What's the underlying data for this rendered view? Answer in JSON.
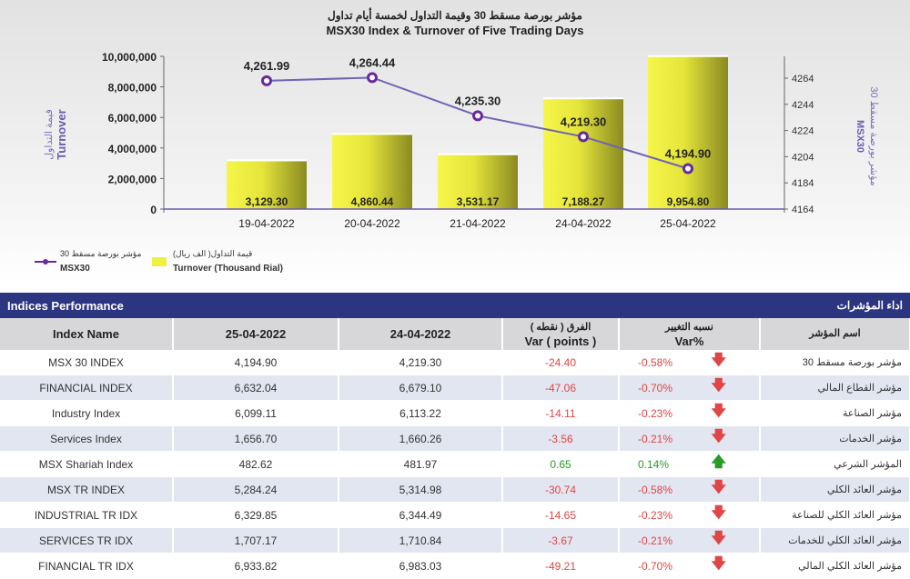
{
  "chart_data": {
    "type": "bar+line",
    "title_ar": "مؤشر بورصة مسقط 30 وقيمة التداول لخمسة أيام تداول",
    "title": "MSX30 Index & Turnover of Five Trading Days",
    "categories": [
      "19-04-2022",
      "20-04-2022",
      "21-04-2022",
      "24-04-2022",
      "25-04-2022"
    ],
    "series": [
      {
        "name": "Turnover (Thousand Rial)",
        "name_ar": "قيمة التداول( الف ريال)",
        "type": "bar",
        "color": "#e8e830",
        "values": [
          3129.3,
          4860.44,
          3531.17,
          7188.27,
          9954.8
        ],
        "labels": [
          "3,129.30",
          "4,860.44",
          "3,531.17",
          "7,188.27",
          "9,954.80"
        ]
      },
      {
        "name": "MSX30",
        "name_ar": "مؤشر بورصة مسقط 30",
        "type": "line",
        "color": "#6a5bb0",
        "values": [
          4261.99,
          4264.44,
          4235.3,
          4219.3,
          4194.9
        ],
        "labels": [
          "4,261.99",
          "4,264.44",
          "4,235.30",
          "4,219.30",
          "4,194.90"
        ]
      }
    ],
    "left_axis": {
      "label": "Turnover",
      "label_ar": "قيمة التداول",
      "ylim": [
        0,
        10000000
      ],
      "bar_value_multiplier": 1000,
      "ticks": [
        "0",
        "2,000,000",
        "4,000,000",
        "6,000,000",
        "8,000,000",
        "10,000,000"
      ],
      "tick_values": [
        0,
        2000000,
        4000000,
        6000000,
        8000000,
        10000000
      ]
    },
    "right_axis": {
      "label": "MSX30",
      "label_ar": "مؤشر بورصة مسقط 30",
      "ylim": [
        4164,
        4264
      ],
      "ticks": [
        "4164",
        "4184",
        "4204",
        "4224",
        "4244",
        "4264"
      ],
      "tick_values": [
        4164,
        4184,
        4204,
        4224,
        4244,
        4264
      ]
    },
    "legend": "bottom-left"
  },
  "table": {
    "title": "Indices Performance",
    "title_ar": "اداء المؤشرات",
    "headers": {
      "name": "Index Name",
      "d1": "25-04-2022",
      "d2": "24-04-2022",
      "var_ar": "الفرق ( نقطه )",
      "var": "Var ( points )",
      "pct_ar": "نسبه التغيير",
      "pct": "Var%",
      "name_ar": "اسم المؤشر"
    },
    "rows": [
      {
        "name": "MSX 30 INDEX",
        "d1": "4,194.90",
        "d2": "4,219.30",
        "var": "-24.40",
        "pct": "-0.58%",
        "dir": "down",
        "ar": "مؤشر بورصة مسقط 30"
      },
      {
        "name": "FINANCIAL INDEX",
        "d1": "6,632.04",
        "d2": "6,679.10",
        "var": "-47.06",
        "pct": "-0.70%",
        "dir": "down",
        "ar": "مؤشر القطاع المالي"
      },
      {
        "name": "Industry Index",
        "d1": "6,099.11",
        "d2": "6,113.22",
        "var": "-14.11",
        "pct": "-0.23%",
        "dir": "down",
        "ar": "مؤشر الصناعة"
      },
      {
        "name": "Services Index",
        "d1": "1,656.70",
        "d2": "1,660.26",
        "var": "-3.56",
        "pct": "-0.21%",
        "dir": "down",
        "ar": "مؤشر الخدمات"
      },
      {
        "name": "MSX Shariah Index",
        "d1": "482.62",
        "d2": "481.97",
        "var": "0.65",
        "pct": "0.14%",
        "dir": "up",
        "ar": "المؤشر الشرعي"
      },
      {
        "name": "MSX TR INDEX",
        "d1": "5,284.24",
        "d2": "5,314.98",
        "var": "-30.74",
        "pct": "-0.58%",
        "dir": "down",
        "ar": "مؤشر العائد الكلي"
      },
      {
        "name": "INDUSTRIAL TR IDX",
        "d1": "6,329.85",
        "d2": "6,344.49",
        "var": "-14.65",
        "pct": "-0.23%",
        "dir": "down",
        "ar": "مؤشر العائد الكلي للصناعة"
      },
      {
        "name": "SERVICES TR IDX",
        "d1": "1,707.17",
        "d2": "1,710.84",
        "var": "-3.67",
        "pct": "-0.21%",
        "dir": "down",
        "ar": "مؤشر العائد الكلي للخدمات"
      },
      {
        "name": "FINANCIAL TR IDX",
        "d1": "6,933.82",
        "d2": "6,983.03",
        "var": "-49.21",
        "pct": "-0.70%",
        "dir": "down",
        "ar": "مؤشر العائد الكلي المالي"
      }
    ]
  }
}
